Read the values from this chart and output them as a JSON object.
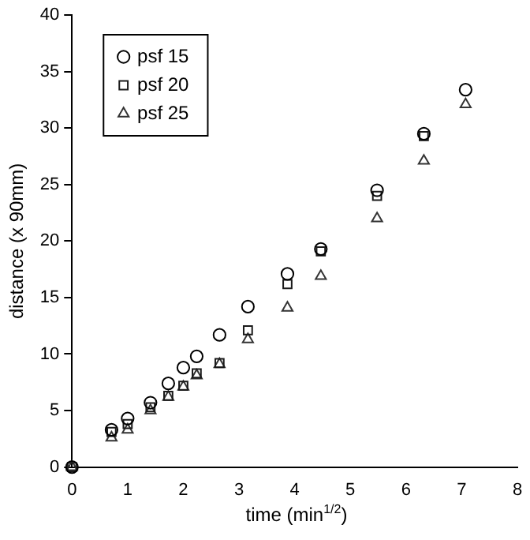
{
  "chart_data": {
    "type": "scatter",
    "xlabel": "time (min$^{1/2}$)",
    "ylabel": "distance (x 90mm)",
    "x": [
      0,
      0.71,
      1,
      1.41,
      1.73,
      2,
      2.24,
      2.65,
      3.16,
      3.87,
      4.47,
      5.48,
      6.32,
      7.07
    ],
    "series": [
      {
        "name": "psf 15",
        "color": "#000000",
        "marker": "circle",
        "values": [
          0,
          3.3,
          4.3,
          5.7,
          7.4,
          8.8,
          9.8,
          11.7,
          14.2,
          17.1,
          19.3,
          24.5,
          29.5,
          33.4
        ]
      },
      {
        "name": "psf 20",
        "color": "#1a1a1a",
        "marker": "square",
        "values": [
          0,
          3.1,
          3.8,
          5.3,
          6.3,
          7.2,
          8.3,
          9.2,
          12.1,
          16.2,
          19.1,
          24.0,
          29.3,
          null
        ]
      },
      {
        "name": "psf 25",
        "color": "#333333",
        "marker": "triangle",
        "values": [
          0,
          2.6,
          3.3,
          5.0,
          6.2,
          7.1,
          8.1,
          9.1,
          11.3,
          14.1,
          16.9,
          22.0,
          27.1,
          32.1
        ]
      }
    ],
    "xlim": [
      0,
      8
    ],
    "xticks": [
      0,
      1,
      2,
      3,
      4,
      5,
      6,
      7,
      8
    ],
    "ylim": [
      0,
      40
    ],
    "yticks": [
      0,
      5,
      10,
      15,
      20,
      25,
      30,
      35,
      40
    ],
    "grid": false,
    "legend": "top left"
  }
}
